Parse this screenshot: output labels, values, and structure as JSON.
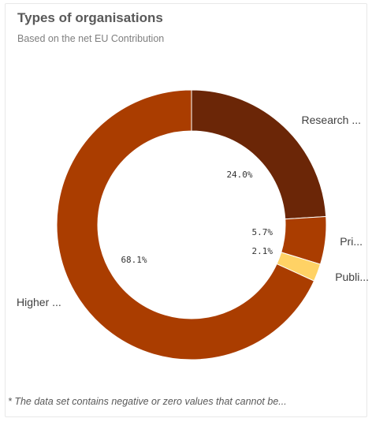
{
  "header": {
    "title": "Types of organisations",
    "subtitle": "Based on the net EU Contribution"
  },
  "footnote": "* The data set contains negative or zero values that cannot be...",
  "chart_data": {
    "type": "pie",
    "donut": true,
    "title": "Types of organisations",
    "subtitle": "Based on the net EU Contribution",
    "start_angle_deg": 0,
    "direction": "clockwise",
    "slices": [
      {
        "label": "Research ...",
        "value": 24.0,
        "value_label": "24.0%",
        "color": "#6b2607"
      },
      {
        "label": "Pri...",
        "value": 5.7,
        "value_label": "5.7%",
        "color": "#aa3d00"
      },
      {
        "label": "Publi...",
        "value": 2.1,
        "value_label": "2.1%",
        "color": "#ffd265"
      },
      {
        "label": "Higher ...",
        "value": 68.1,
        "value_label": "68.1%",
        "color": "#aa3d00"
      }
    ]
  }
}
